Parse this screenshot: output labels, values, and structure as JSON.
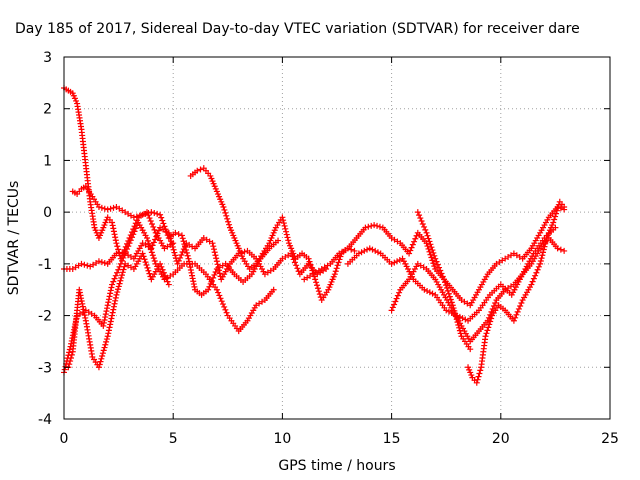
{
  "chart_data": {
    "type": "scatter",
    "title": "Day 185 of 2017, Sidereal Day-to-day VTEC variation (SDTVAR) for receiver dare",
    "xlabel": "GPS time / hours",
    "ylabel": "SDTVAR / TECUs",
    "xlim": [
      0,
      25
    ],
    "ylim": [
      -4,
      3
    ],
    "xticks": [
      "0",
      "5",
      "10",
      "15",
      "20",
      "25"
    ],
    "yticks": [
      "3",
      "2",
      "1",
      "0",
      "-1",
      "-2",
      "-3",
      "-4"
    ],
    "grid": true,
    "marker": "plus",
    "color": "#ff0000",
    "series": [
      {
        "name": "trace-1",
        "x": [
          0.0,
          0.2,
          0.4,
          0.6,
          0.8,
          1.0,
          1.2,
          1.4,
          1.6,
          1.8,
          2.0,
          2.2,
          2.4,
          2.6,
          3.0,
          3.4,
          3.8,
          4.2,
          4.6,
          5.0
        ],
        "y": [
          2.4,
          2.35,
          2.3,
          2.1,
          1.6,
          0.9,
          0.2,
          -0.3,
          -0.5,
          -0.3,
          -0.1,
          -0.2,
          -0.6,
          -0.9,
          -0.5,
          -0.1,
          0.0,
          -0.4,
          -0.7,
          -0.6
        ]
      },
      {
        "name": "trace-2",
        "x": [
          0.4,
          0.6,
          0.8,
          1.0,
          1.3,
          1.6,
          2.0,
          2.4,
          2.8,
          3.2,
          3.6,
          4.0,
          4.4,
          4.8,
          5.1,
          5.4,
          5.7,
          6.0,
          6.3,
          6.6,
          7.0,
          7.4,
          7.8,
          8.2,
          8.6,
          9.0,
          9.4,
          9.8
        ],
        "y": [
          0.4,
          0.35,
          0.45,
          0.5,
          0.3,
          0.1,
          0.05,
          0.1,
          0.0,
          -0.1,
          -0.05,
          0.0,
          -0.05,
          -0.5,
          -0.4,
          -0.45,
          -0.9,
          -1.5,
          -1.6,
          -1.5,
          -1.1,
          -1.0,
          -1.2,
          -1.35,
          -1.2,
          -0.9,
          -0.7,
          -0.55
        ]
      },
      {
        "name": "trace-3",
        "x": [
          0.0,
          0.4,
          0.8,
          1.2,
          1.6,
          2.0,
          2.4,
          2.8,
          3.2,
          3.6,
          4.0,
          4.4,
          4.8,
          5.2,
          5.6,
          6.0,
          6.4,
          6.8,
          7.2,
          7.6,
          8.0,
          8.4,
          8.8,
          9.2,
          9.6,
          10.0,
          10.4,
          10.8,
          11.2,
          11.6,
          12.0
        ],
        "y": [
          -1.1,
          -1.1,
          -1.0,
          -1.05,
          -0.95,
          -1.0,
          -0.8,
          -0.8,
          -0.9,
          -0.6,
          -0.7,
          -0.3,
          -0.4,
          -1.0,
          -0.6,
          -0.7,
          -0.5,
          -0.6,
          -1.3,
          -1.0,
          -0.8,
          -0.75,
          -0.9,
          -1.2,
          -1.1,
          -0.9,
          -0.8,
          -1.2,
          -1.0,
          -1.2,
          -1.1
        ]
      },
      {
        "name": "trace-4",
        "x": [
          0.0,
          0.3,
          0.6,
          1.0,
          1.4,
          1.8,
          2.2,
          2.6,
          3.0,
          3.4,
          3.8,
          4.2,
          4.6,
          5.0,
          5.5,
          6.0,
          6.5,
          7.0,
          7.5,
          8.0,
          8.4,
          8.8,
          9.2,
          9.6
        ],
        "y": [
          -3.1,
          -2.6,
          -2.0,
          -1.9,
          -2.0,
          -2.2,
          -1.4,
          -1.0,
          -0.6,
          -0.2,
          -0.5,
          -1.0,
          -1.3,
          -1.2,
          -1.0,
          -1.0,
          -1.2,
          -1.5,
          -2.0,
          -2.3,
          -2.1,
          -1.8,
          -1.7,
          -1.5
        ]
      },
      {
        "name": "trace-5",
        "x": [
          0.2,
          0.4,
          0.7,
          1.0,
          1.3,
          1.6,
          2.0,
          2.4,
          2.8,
          3.2,
          3.6,
          4.0,
          4.4,
          4.8
        ],
        "y": [
          -3.0,
          -2.7,
          -1.5,
          -2.1,
          -2.8,
          -3.0,
          -2.4,
          -1.6,
          -1.0,
          -1.1,
          -0.8,
          -1.3,
          -1.0,
          -1.4
        ]
      },
      {
        "name": "trace-6",
        "x": [
          5.8,
          6.1,
          6.4,
          6.7,
          7.0,
          7.3,
          7.6,
          7.9,
          8.2,
          8.5,
          8.8,
          9.1,
          9.4,
          9.7,
          10.0,
          10.3,
          10.6,
          10.9,
          11.2,
          11.5,
          11.8,
          12.1,
          12.4,
          12.7,
          13.0,
          13.3
        ],
        "y": [
          0.7,
          0.8,
          0.85,
          0.7,
          0.4,
          0.1,
          -0.3,
          -0.6,
          -0.9,
          -1.1,
          -1.0,
          -0.8,
          -0.6,
          -0.3,
          -0.1,
          -0.6,
          -0.9,
          -0.8,
          -0.9,
          -1.3,
          -1.7,
          -1.5,
          -1.2,
          -0.8,
          -0.7,
          -0.75
        ]
      },
      {
        "name": "trace-7",
        "x": [
          11.0,
          11.4,
          11.8,
          12.2,
          12.6,
          13.0,
          13.4,
          13.8,
          14.2,
          14.6,
          15.0,
          15.4,
          15.8,
          16.2,
          16.6,
          17.0,
          17.4,
          17.8,
          18.2,
          18.6,
          19.0,
          19.4,
          19.8,
          20.2,
          20.6,
          21.0,
          21.4,
          21.8,
          22.2,
          22.6,
          22.9
        ],
        "y": [
          -1.3,
          -1.2,
          -1.1,
          -1.0,
          -0.8,
          -0.7,
          -0.5,
          -0.3,
          -0.25,
          -0.3,
          -0.5,
          -0.6,
          -0.8,
          -0.4,
          -0.6,
          -1.1,
          -1.3,
          -1.5,
          -1.7,
          -1.8,
          -1.5,
          -1.2,
          -1.0,
          -0.9,
          -0.8,
          -0.9,
          -0.7,
          -0.4,
          -0.1,
          0.1,
          0.05
        ]
      },
      {
        "name": "trace-8",
        "x": [
          15.0,
          15.4,
          15.8,
          16.2,
          16.6,
          17.0,
          17.4,
          17.8,
          18.2,
          18.6,
          19.0,
          19.4,
          19.8,
          20.2,
          20.6,
          21.0,
          21.4,
          21.8,
          22.2,
          22.6,
          22.9
        ],
        "y": [
          -1.9,
          -1.5,
          -1.3,
          -1.0,
          -1.1,
          -1.3,
          -1.6,
          -1.9,
          -2.2,
          -2.5,
          -2.3,
          -2.1,
          -1.7,
          -1.5,
          -1.4,
          -1.2,
          -1.0,
          -0.7,
          -0.5,
          -0.7,
          -0.75
        ]
      },
      {
        "name": "trace-9",
        "x": [
          16.2,
          16.6,
          17.0,
          17.4,
          17.8,
          18.2,
          18.6
        ],
        "y": [
          0.0,
          -0.4,
          -0.9,
          -1.3,
          -1.8,
          -2.4,
          -2.65
        ]
      },
      {
        "name": "trace-10",
        "x": [
          18.5,
          18.7,
          18.9,
          19.1,
          19.3,
          19.6,
          19.9,
          20.2,
          20.6,
          21.0,
          21.4,
          21.8,
          22.1,
          22.4,
          22.7,
          22.9
        ],
        "y": [
          -3.0,
          -3.2,
          -3.3,
          -3.0,
          -2.4,
          -2.0,
          -1.8,
          -1.9,
          -2.1,
          -1.7,
          -1.4,
          -1.0,
          -0.5,
          -0.2,
          0.2,
          0.1
        ]
      },
      {
        "name": "trace-11",
        "x": [
          13.0,
          13.5,
          14.0,
          14.5,
          15.0,
          15.5,
          16.0,
          16.5,
          17.0,
          17.5,
          18.0,
          18.5,
          19.0,
          19.5,
          20.0,
          20.5,
          21.0,
          21.5,
          22.0,
          22.5
        ],
        "y": [
          -1.0,
          -0.8,
          -0.7,
          -0.8,
          -1.0,
          -0.9,
          -1.3,
          -1.5,
          -1.6,
          -1.9,
          -2.0,
          -2.1,
          -1.9,
          -1.6,
          -1.4,
          -1.6,
          -1.2,
          -0.8,
          -0.5,
          -0.3
        ]
      }
    ]
  }
}
